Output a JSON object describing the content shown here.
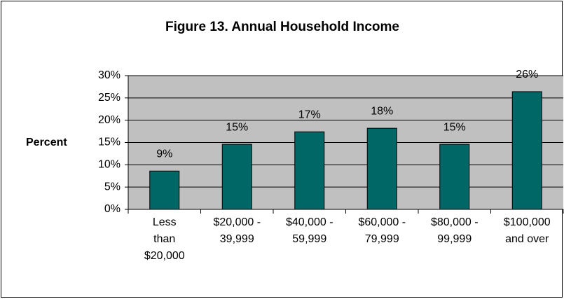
{
  "chart_data": {
    "type": "bar",
    "title": "Figure 13.  Annual Household Income",
    "y_label": "Percent",
    "categories": [
      "Less than $20,000",
      "$20,000 - 39,999",
      "$40,000 - 59,999",
      "$60,000 - 79,999",
      "$80,000 - 99,999",
      "$100,000 and over"
    ],
    "values": [
      8.6,
      14.6,
      17.4,
      18.2,
      14.6,
      26.4
    ],
    "value_labels": [
      "9%",
      "15%",
      "17%",
      "18%",
      "15%",
      "26%"
    ],
    "color": "#006666",
    "ylim": [
      0,
      30
    ],
    "yticks": [
      {
        "value": 0,
        "label": "0%"
      },
      {
        "value": 5,
        "label": "5%"
      },
      {
        "value": 10,
        "label": "10%"
      },
      {
        "value": 15,
        "label": "15%"
      },
      {
        "value": 20,
        "label": "20%"
      },
      {
        "value": 25,
        "label": "25%"
      },
      {
        "value": 30,
        "label": "30%"
      }
    ],
    "grid": true
  }
}
